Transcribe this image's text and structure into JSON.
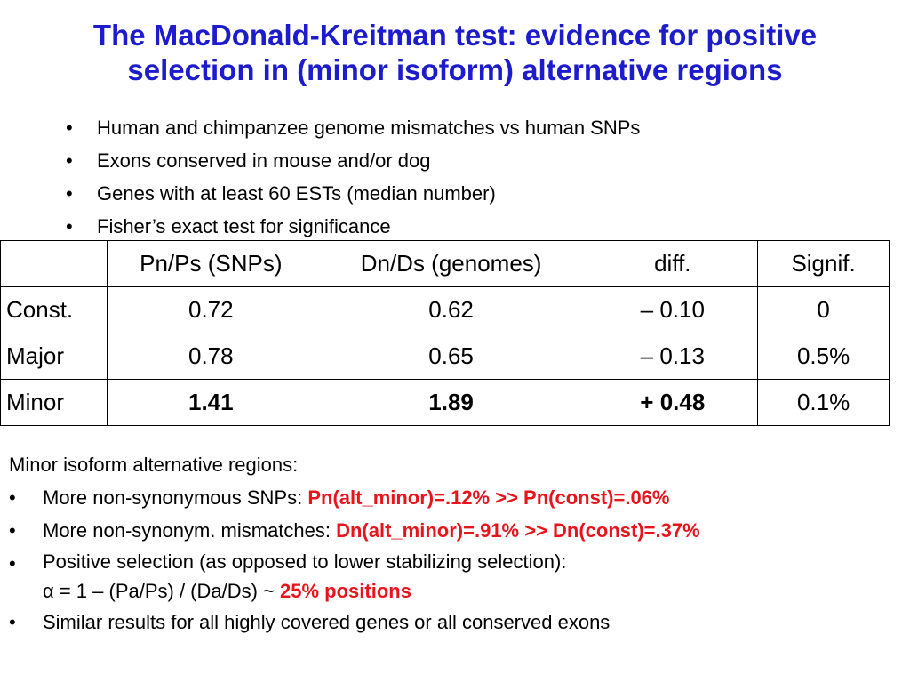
{
  "title": {
    "line1": "The MacDonald-Kreitman test: evidence for positive",
    "line2": "selection in (minor isoform) alternative regions"
  },
  "bullets": [
    "Human and chimpanzee genome mismatches vs human SNPs",
    "Exons conserved in mouse and/or dog",
    "Genes with at least 60 ESTs (median number)",
    "Fisher’s exact test for significance"
  ],
  "table": {
    "headers": [
      "",
      "Pn/Ps (SNPs)",
      "Dn/Ds (genomes)",
      "diff.",
      "Signif."
    ],
    "rows": [
      [
        "Const.",
        "0.72",
        "0.62",
        "– 0.10",
        "0"
      ],
      [
        "Major",
        "0.78",
        "0.65",
        "– 0.13",
        "0.5%"
      ],
      [
        "Minor",
        "1.41",
        "1.89",
        "+ 0.48",
        "0.1%"
      ]
    ]
  },
  "notes": {
    "lead": "Minor isoform alternative regions:",
    "item1": {
      "text": "More non-synonymous SNPs: ",
      "highlight": "Pn(alt_minor)=.12% >> Pn(const)=.06%"
    },
    "item2": {
      "text": "More non-synonym. mismatches: ",
      "highlight": "Dn(alt_minor)=.91% >> Dn(const)=.37%"
    },
    "item3": {
      "line1": "Positive selection (as opposed to lower stabilizing selection):",
      "line2": "α = 1 – (Pa/Ps) / (Da/Ds) ~ ",
      "highlight": "25% positions"
    },
    "item4": "Similar results for all highly covered genes or all conserved exons"
  },
  "colors": {
    "title": "#1c1ccc",
    "highlight": "#e8141c"
  }
}
